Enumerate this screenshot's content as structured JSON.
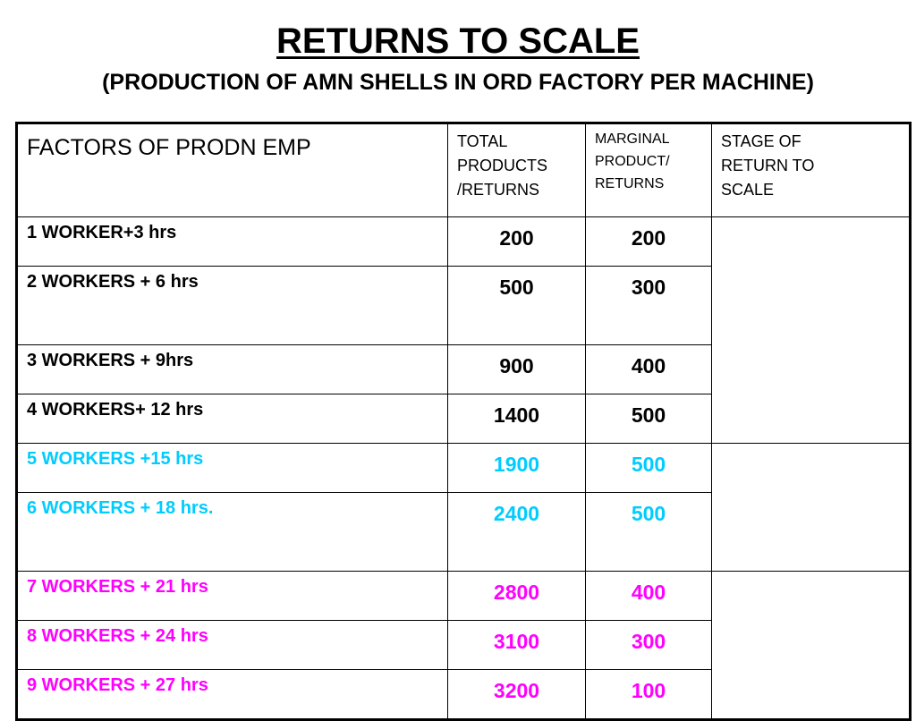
{
  "title": "RETURNS TO SCALE",
  "subtitle": "(PRODUCTION OF AMN SHELLS IN ORD FACTORY PER MACHINE)",
  "colors": {
    "constant_returns_text": "#00ccff",
    "diminishing_returns_text": "#ff00ff",
    "default_text": "#000000"
  },
  "table": {
    "headers": {
      "factors": "FACTORS OF PRODN EMP",
      "total": [
        "TOTAL",
        "PRODUCTS",
        "/RETURNS"
      ],
      "marginal": [
        "MARGINAL",
        "PRODUCT/",
        "RETURNS"
      ],
      "stage": [
        "STAGE OF",
        "RETURN TO",
        "SCALE"
      ]
    },
    "rows": [
      {
        "factors": "1 WORKER+3 hrs",
        "total": "200",
        "marginal": "200"
      },
      {
        "factors": "2 WORKERS + 6 hrs",
        "total": "500",
        "marginal": "300"
      },
      {
        "factors": "3 WORKERS + 9hrs",
        "total": "900",
        "marginal": "400"
      },
      {
        "factors": "4 WORKERS+ 12 hrs",
        "total": "1400",
        "marginal": "500"
      },
      {
        "factors": "5 WORKERS +15 hrs",
        "total": "1900",
        "marginal": "500"
      },
      {
        "factors": "6 WORKERS + 18 hrs.",
        "total": "2400",
        "marginal": "500"
      },
      {
        "factors": "7 WORKERS + 21 hrs",
        "total": "2800",
        "marginal": "400"
      },
      {
        "factors": "8 WORKERS + 24 hrs",
        "total": "3100",
        "marginal": "300"
      },
      {
        "factors": "9 WORKERS + 27 hrs",
        "total": "3200",
        "marginal": "100"
      }
    ],
    "stages": [
      "",
      "",
      ""
    ]
  }
}
